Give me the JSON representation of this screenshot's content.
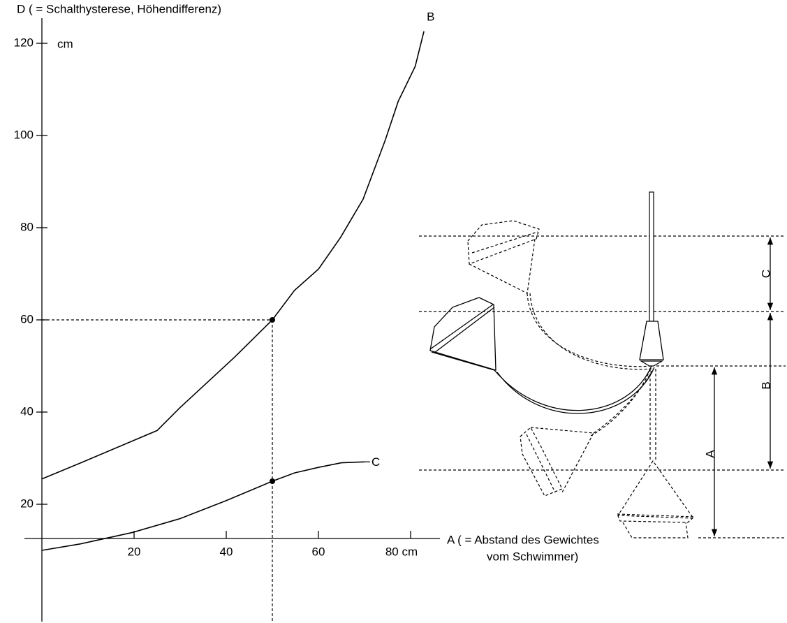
{
  "chart_data": {
    "type": "line",
    "ylabel": "D ( = Schalthysterese, Höhendifferenz)",
    "yunit": "cm",
    "xlabel": [
      "A ( = Abstand des Gewichtes",
      "vom Schwimmer)"
    ],
    "xlim": [
      0,
      85
    ],
    "ylim": [
      0,
      125
    ],
    "xticks": [
      20,
      40,
      60,
      {
        "value": 80,
        "label": "80 cm"
      }
    ],
    "yticks": [
      20,
      40,
      60,
      80,
      100,
      120
    ],
    "series": [
      {
        "name": "B",
        "color": "#000000",
        "x": [
          0,
          8,
          25,
          30,
          41.7,
          50,
          54.8,
          60,
          64.8,
          69.7,
          74.5,
          77.3,
          81,
          82.9
        ],
        "y": [
          25.5,
          28.8,
          36,
          41,
          51.8,
          60,
          66.4,
          71,
          77.9,
          86.2,
          99,
          107.4,
          115,
          122.6
        ]
      },
      {
        "name": "C",
        "color": "#000000",
        "x": [
          0,
          8.3,
          19.7,
          30,
          40,
          50,
          54.8,
          60,
          65,
          70
        ],
        "y": [
          10,
          11.4,
          13.9,
          16.9,
          20.8,
          25,
          26.8,
          28,
          29,
          29.2
        ]
      }
    ],
    "points": [
      {
        "x": 50,
        "y": 60
      },
      {
        "x": 50,
        "y": 25
      }
    ]
  },
  "diagram": {
    "labels": [
      "C",
      "B",
      "A"
    ]
  }
}
